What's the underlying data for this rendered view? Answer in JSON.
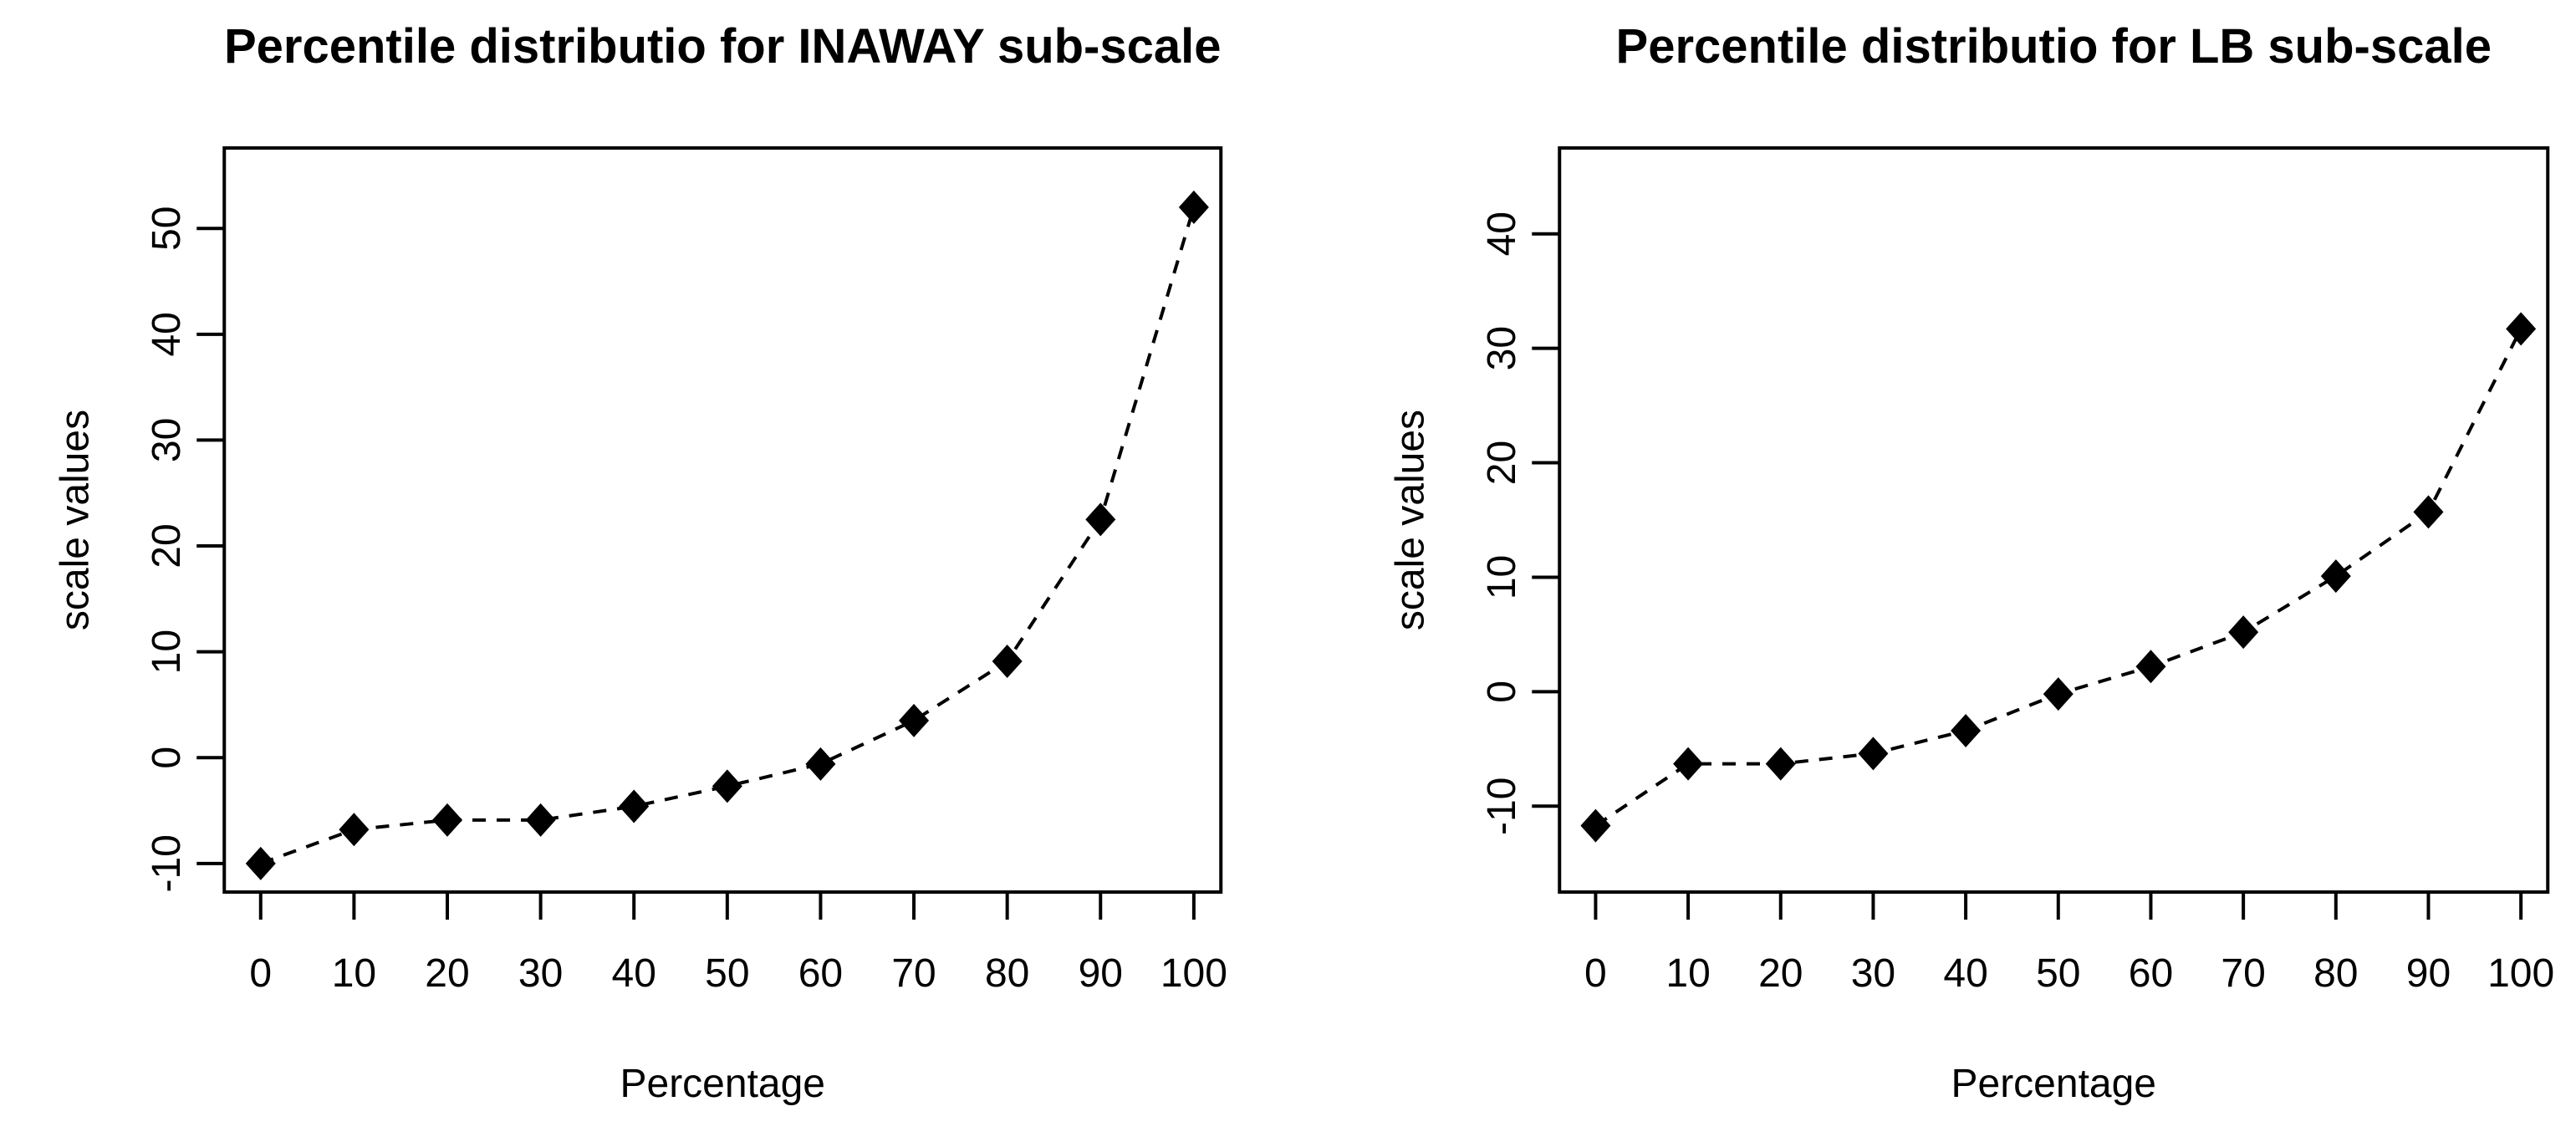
{
  "page": {
    "background": "#ffffff",
    "text_color": "#000000"
  },
  "chart_data": [
    {
      "type": "line",
      "subscale": "INAWAY",
      "title": "Percentile distributio for INAWAY sub-scale",
      "xlabel": "Percentage",
      "ylabel": "scale values",
      "x": [
        0,
        10,
        20,
        30,
        40,
        50,
        60,
        70,
        80,
        90,
        100
      ],
      "values": [
        -10.0,
        -6.8,
        -5.9,
        -5.9,
        -4.6,
        -2.7,
        -0.6,
        3.5,
        9.1,
        22.5,
        52.0
      ],
      "xticks": [
        0,
        10,
        20,
        30,
        40,
        50,
        60,
        70,
        80,
        90,
        100
      ],
      "yticks": [
        -10,
        0,
        10,
        20,
        30,
        40,
        50
      ],
      "xlim": [
        -3.9,
        102.9
      ],
      "ylim": [
        -12.7,
        57.6
      ],
      "marker": "filled-diamond",
      "line_style": "dashed",
      "color": "#000000",
      "background": "#ffffff",
      "grid": false,
      "legend": false
    },
    {
      "type": "line",
      "subscale": "LB",
      "title": "Percentile distributio for LB sub-scale",
      "xlabel": "Percentage",
      "ylabel": "scale values",
      "x": [
        0,
        10,
        20,
        30,
        40,
        50,
        60,
        70,
        80,
        90,
        100
      ],
      "values": [
        -11.7,
        -6.3,
        -6.3,
        -5.4,
        -3.4,
        -0.2,
        2.2,
        5.2,
        10.1,
        15.7,
        31.7
      ],
      "xticks": [
        0,
        10,
        20,
        30,
        40,
        50,
        60,
        70,
        80,
        90,
        100
      ],
      "yticks": [
        -10,
        0,
        10,
        20,
        30,
        40
      ],
      "xlim": [
        -3.9,
        102.9
      ],
      "ylim": [
        -17.5,
        47.5
      ],
      "marker": "filled-diamond",
      "line_style": "dashed",
      "color": "#000000",
      "background": "#ffffff",
      "grid": false,
      "legend": false
    }
  ]
}
